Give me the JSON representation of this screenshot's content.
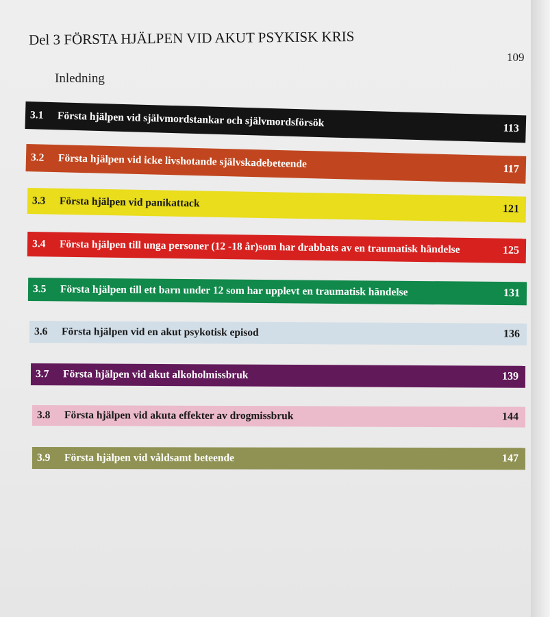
{
  "heading": "Del 3 FÖRSTA HJÄLPEN VID AKUT PSYKISK KRIS",
  "heading_page": "109",
  "intro": "Inledning",
  "entries": [
    {
      "number": "3.1",
      "title": "Första hjälpen vid självmordstankar och självmordsförsök",
      "page": "113",
      "color": "#141414"
    },
    {
      "number": "3.2",
      "title": "Första hjälpen vid icke livshotande självskadebeteende",
      "page": "117",
      "color": "#c1461f"
    },
    {
      "number": "3.3",
      "title": "Första hjälpen vid panikattack",
      "page": "121",
      "color": "#e9dd1c"
    },
    {
      "number": "3.4",
      "title": "Första hjälpen till unga personer (12 -18 år)som har drabbats av en traumatisk händelse",
      "page": "125",
      "color": "#d6211f"
    },
    {
      "number": "3.5",
      "title": "Första hjälpen till ett barn under 12 som har upplevt en traumatisk händelse",
      "page": "131",
      "color": "#10894a"
    },
    {
      "number": "3.6",
      "title": "Första hjälpen vid en akut psykotisk episod",
      "page": "136",
      "color": "#d2dee7"
    },
    {
      "number": "3.7",
      "title": "Första hjälpen vid akut alkoholmissbruk",
      "page": "139",
      "color": "#62195a"
    },
    {
      "number": "3.8",
      "title": "Första hjälpen vid akuta effekter av drogmissbruk",
      "page": "144",
      "color": "#ebbacb"
    },
    {
      "number": "3.9",
      "title": "Första hjälpen vid våldsamt beteende",
      "page": "147",
      "color": "#8f9253"
    }
  ]
}
